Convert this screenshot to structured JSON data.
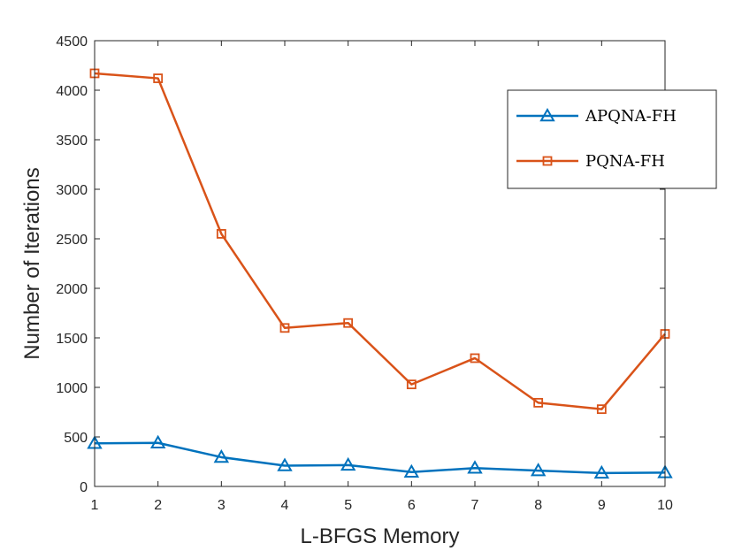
{
  "chart_data": {
    "type": "line",
    "xlabel": "L-BFGS Memory",
    "ylabel": "Number of Iterations",
    "x": [
      1,
      2,
      3,
      4,
      5,
      6,
      7,
      8,
      9,
      10
    ],
    "xlim": [
      1,
      10
    ],
    "ylim": [
      0,
      4500
    ],
    "x_ticks": [
      "1",
      "2",
      "3",
      "4",
      "5",
      "6",
      "7",
      "8",
      "9",
      "10"
    ],
    "y_ticks": [
      "0",
      "500",
      "1000",
      "1500",
      "2000",
      "2500",
      "3000",
      "3500",
      "4000",
      "4500"
    ],
    "grid": false,
    "legend_position": "top-right",
    "series": [
      {
        "name": "APQNA-FH",
        "color": "#0072bd",
        "marker": "triangle",
        "values": [
          435,
          440,
          295,
          210,
          215,
          145,
          185,
          160,
          135,
          140
        ]
      },
      {
        "name": "PQNA-FH",
        "color": "#d95319",
        "marker": "square",
        "values": [
          4170,
          4120,
          2550,
          1600,
          1650,
          1030,
          1295,
          845,
          780,
          1540
        ]
      }
    ]
  }
}
